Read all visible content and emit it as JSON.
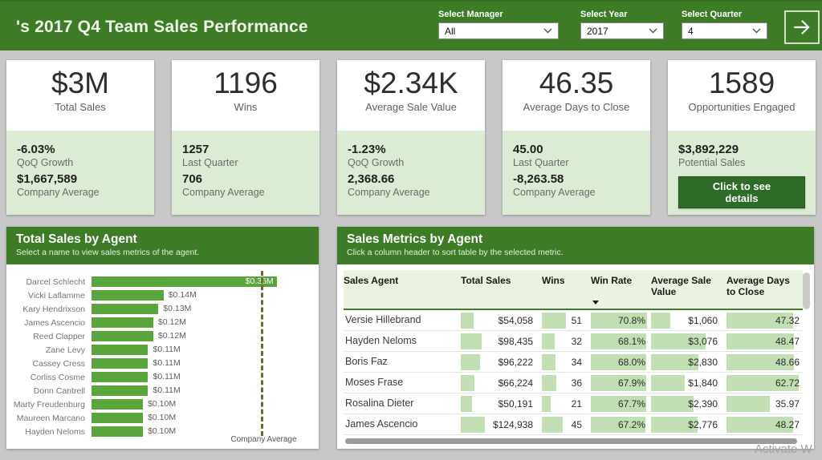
{
  "header": {
    "title": "'s 2017 Q4 Team Sales Performance",
    "filters": [
      {
        "label": "Select Manager",
        "value": "All"
      },
      {
        "label": "Select Year",
        "value": "2017"
      },
      {
        "label": "Select Quarter",
        "value": "4"
      }
    ]
  },
  "kpi_cards": [
    {
      "value": "$3M",
      "label": "Total Sales",
      "stats": [
        {
          "value": "-6.03%",
          "label": "QoQ Growth"
        },
        {
          "value": "$1,667,589",
          "label": "Company Average"
        }
      ]
    },
    {
      "value": "1196",
      "label": "Wins",
      "stats": [
        {
          "value": "1257",
          "label": "Last Quarter"
        },
        {
          "value": "706",
          "label": "Company Average"
        }
      ]
    },
    {
      "value": "$2.34K",
      "label": "Average Sale Value",
      "stats": [
        {
          "value": "-1.23%",
          "label": "QoQ Growth"
        },
        {
          "value": "2,368.66",
          "label": "Company Average"
        }
      ]
    },
    {
      "value": "46.35",
      "label": "Average Days to Close",
      "stats": [
        {
          "value": "45.00",
          "label": "Last Quarter"
        },
        {
          "value": "-8,263.58",
          "label": "Company Average"
        }
      ]
    },
    {
      "value": "1589",
      "label": "Opportunities Engaged",
      "stats": [
        {
          "value": "$3,892,229",
          "label": "Potential Sales"
        }
      ],
      "button": "Click to see details"
    }
  ],
  "chart_panel": {
    "title": "Total Sales by Agent",
    "subtitle": "Select a name to view sales metrics of the agent."
  },
  "chart_data": {
    "type": "bar",
    "orientation": "horizontal",
    "title": "Total Sales by Agent",
    "categories": [
      "Darcel Schlecht",
      "Vicki Laflamme",
      "Kary Hendrixson",
      "James Ascencio",
      "Reed Clapper",
      "Zane Levy",
      "Cassey Cress",
      "Corliss Cosme",
      "Donn Cantrell",
      "Marty Freudenburg",
      "Maureen Marcano",
      "Hayden Neloms"
    ],
    "values": [
      0.36,
      0.14,
      0.13,
      0.12,
      0.12,
      0.11,
      0.11,
      0.11,
      0.11,
      0.1,
      0.1,
      0.1
    ],
    "value_labels": [
      "$0.36M",
      "$0.14M",
      "$0.13M",
      "$0.12M",
      "$0.12M",
      "$0.11M",
      "$0.11M",
      "$0.11M",
      "$0.11M",
      "$0.10M",
      "$0.10M",
      "$0.10M"
    ],
    "value_unit": "$M",
    "xlim": [
      0,
      0.42
    ],
    "reference_line": {
      "label": "Company Average",
      "value": 0.33
    }
  },
  "table_panel": {
    "title": "Sales Metrics by Agent",
    "subtitle": "Click a column header to sort table by the selected metric.",
    "columns": [
      "Sales Agent",
      "Total Sales",
      "Wins",
      "Win Rate",
      "Average Sale Value",
      "Average Days to Close"
    ],
    "sorted_column": "Win Rate",
    "sort_direction": "descending",
    "rows": [
      {
        "agent": "Versie Hillebrand",
        "metrics": [
          {
            "text": "$54,058",
            "bar": 0.17
          },
          {
            "text": "51",
            "bar": 0.58
          },
          {
            "text": "70.8%",
            "bar": 0.97
          },
          {
            "text": "$1,060",
            "bar": 0.28
          },
          {
            "text": "47.32",
            "bar": 0.91
          }
        ]
      },
      {
        "agent": "Hayden Neloms",
        "metrics": [
          {
            "text": "$98,435",
            "bar": 0.28
          },
          {
            "text": "32",
            "bar": 0.31
          },
          {
            "text": "68.1%",
            "bar": 0.96
          },
          {
            "text": "$3,076",
            "bar": 0.8
          },
          {
            "text": "48.47",
            "bar": 0.92
          }
        ]
      },
      {
        "agent": "Boris Faz",
        "metrics": [
          {
            "text": "$96,222",
            "bar": 0.26
          },
          {
            "text": "34",
            "bar": 0.33
          },
          {
            "text": "68.0%",
            "bar": 0.96
          },
          {
            "text": "$2,830",
            "bar": 0.69
          },
          {
            "text": "48.66",
            "bar": 0.92
          }
        ]
      },
      {
        "agent": "Moses Frase",
        "metrics": [
          {
            "text": "$66,224",
            "bar": 0.18
          },
          {
            "text": "36",
            "bar": 0.35
          },
          {
            "text": "67.9%",
            "bar": 0.96
          },
          {
            "text": "$1,840",
            "bar": 0.49
          },
          {
            "text": "62.72",
            "bar": 0.99
          }
        ]
      },
      {
        "agent": "Rosalina Dieter",
        "metrics": [
          {
            "text": "$50,191",
            "bar": 0.15
          },
          {
            "text": "21",
            "bar": 0.21
          },
          {
            "text": "67.7%",
            "bar": 0.96
          },
          {
            "text": "$2,390",
            "bar": 0.62
          },
          {
            "text": "35.97",
            "bar": 0.59
          }
        ]
      },
      {
        "agent": "James Ascencio",
        "metrics": [
          {
            "text": "$124,938",
            "bar": 0.33
          },
          {
            "text": "45",
            "bar": 0.5
          },
          {
            "text": "67.2%",
            "bar": 0.95
          },
          {
            "text": "$2,776",
            "bar": 0.68
          },
          {
            "text": "48.27",
            "bar": 0.91
          }
        ]
      }
    ]
  },
  "watermark": "Activate W",
  "colors": {
    "header_green": "#3d7b27",
    "bar_green": "#58a53c",
    "card_light_green": "#dcebd3",
    "table_bar_green": "#c2deb3",
    "table_header_bg": "#e9f3df",
    "button_green": "#2e6b28",
    "reference_line_olive": "#6e6930",
    "background_gray": "#c8c8c8"
  }
}
